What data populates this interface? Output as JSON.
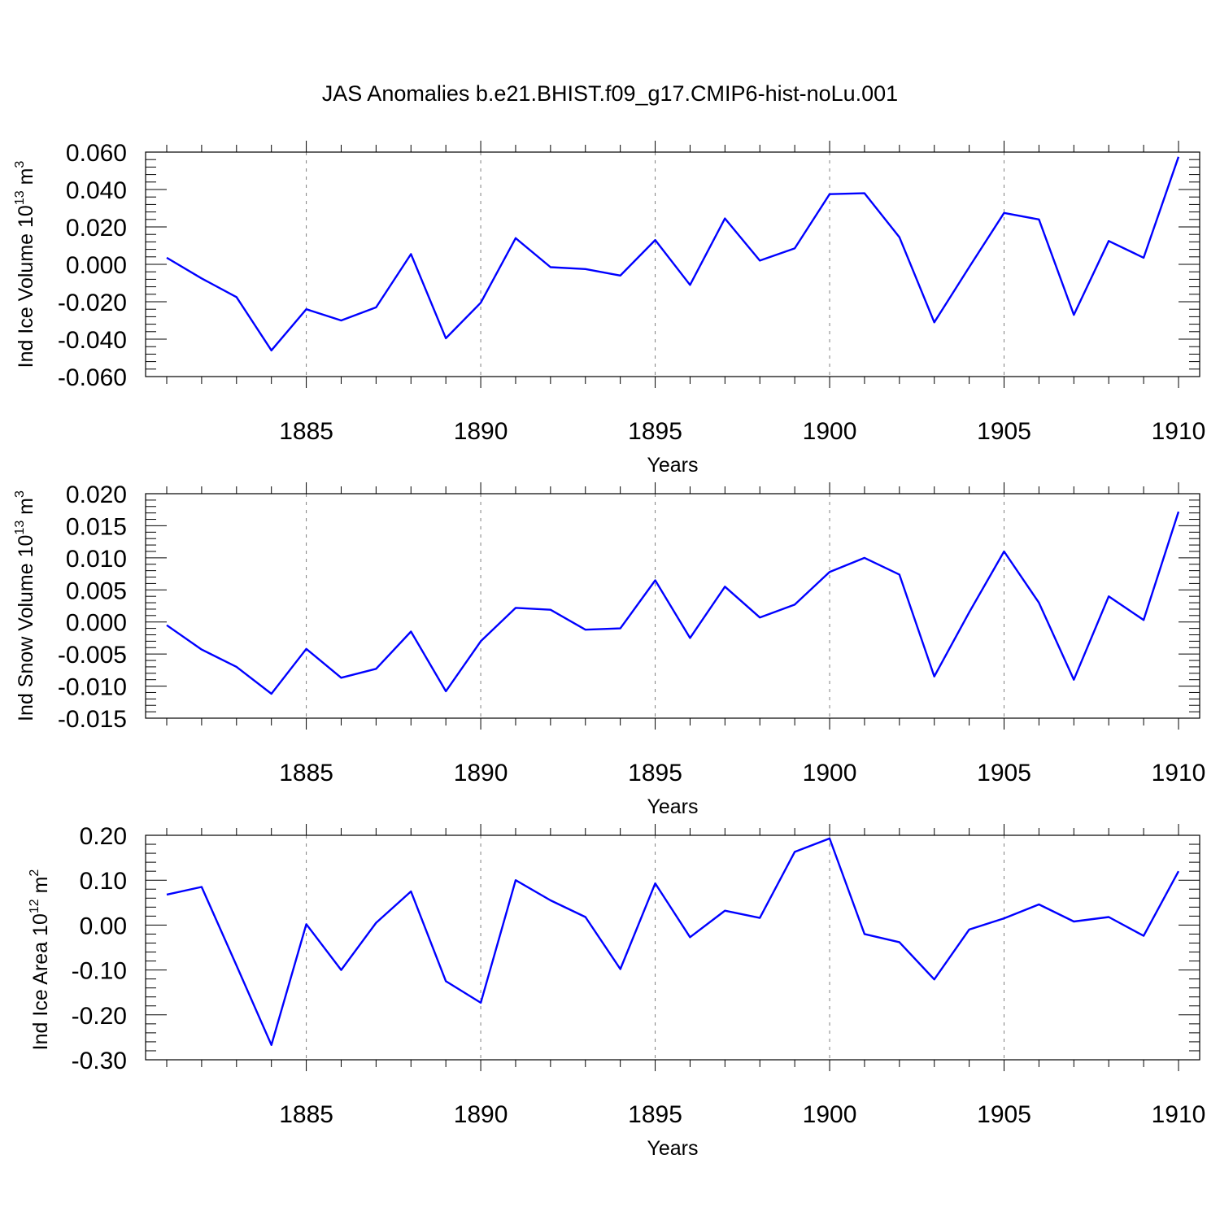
{
  "title": "JAS Anomalies b.e21.BHIST.f09_g17.CMIP6-hist-noLu.001",
  "line_color": "#0000ff",
  "chart_data": [
    {
      "type": "line",
      "ylabel": "Ind Ice Volume 10",
      "ylabel_exp": "13",
      "ylabel_unit": "m",
      "ylabel_unit_exp": "3",
      "xlabel": "Years",
      "xlim": [
        1881,
        1910
      ],
      "ylim": [
        -0.06,
        0.06
      ],
      "x_ticks": [
        1885,
        1890,
        1895,
        1900,
        1905,
        1910
      ],
      "x_tick_labels": [
        "1885",
        "1890",
        "1895",
        "1900",
        "1905",
        "1910"
      ],
      "y_ticks": [
        0.06,
        0.04,
        0.02,
        0.0,
        -0.02,
        -0.04,
        -0.06
      ],
      "y_tick_labels": [
        "0.060",
        "0.040",
        "0.020",
        "0.000",
        "-0.020",
        "-0.040",
        "-0.060"
      ],
      "grid": "vertical dashed at major x ticks",
      "x": [
        1881,
        1882,
        1883,
        1884,
        1885,
        1886,
        1887,
        1888,
        1889,
        1890,
        1891,
        1892,
        1893,
        1894,
        1895,
        1896,
        1897,
        1898,
        1899,
        1900,
        1901,
        1902,
        1903,
        1904,
        1905,
        1906,
        1907,
        1908,
        1909,
        1910
      ],
      "values": [
        0.0035,
        -0.0075,
        -0.0175,
        -0.046,
        -0.024,
        -0.03,
        -0.023,
        0.0055,
        -0.0395,
        -0.0205,
        0.014,
        -0.0015,
        -0.0025,
        -0.006,
        0.013,
        -0.011,
        0.0245,
        0.002,
        0.0085,
        0.0375,
        0.038,
        0.0145,
        -0.031,
        -0.0015,
        0.0275,
        0.024,
        -0.027,
        0.0125,
        0.0035,
        0.0575
      ]
    },
    {
      "type": "line",
      "ylabel": "Ind Snow Volume 10",
      "ylabel_exp": "13",
      "ylabel_unit": "m",
      "ylabel_unit_exp": "3",
      "xlabel": "Years",
      "xlim": [
        1881,
        1910
      ],
      "ylim": [
        -0.015,
        0.02
      ],
      "x_ticks": [
        1885,
        1890,
        1895,
        1900,
        1905,
        1910
      ],
      "x_tick_labels": [
        "1885",
        "1890",
        "1895",
        "1900",
        "1905",
        "1910"
      ],
      "y_ticks": [
        0.02,
        0.015,
        0.01,
        0.005,
        0.0,
        -0.005,
        -0.01,
        -0.015
      ],
      "y_tick_labels": [
        "0.020",
        "0.015",
        "0.010",
        "0.005",
        "0.000",
        "-0.005",
        "-0.010",
        "-0.015"
      ],
      "grid": "vertical dashed at major x ticks",
      "x": [
        1881,
        1882,
        1883,
        1884,
        1885,
        1886,
        1887,
        1888,
        1889,
        1890,
        1891,
        1892,
        1893,
        1894,
        1895,
        1896,
        1897,
        1898,
        1899,
        1900,
        1901,
        1902,
        1903,
        1904,
        1905,
        1906,
        1907,
        1908,
        1909,
        1910
      ],
      "values": [
        -0.0005,
        -0.0043,
        -0.007,
        -0.0112,
        -0.0042,
        -0.0087,
        -0.0073,
        -0.0015,
        -0.0108,
        -0.003,
        0.0022,
        0.0019,
        -0.0012,
        -0.001,
        0.0065,
        -0.0025,
        0.0055,
        0.0007,
        0.0027,
        0.0078,
        0.01,
        0.0074,
        -0.0085,
        0.0015,
        0.011,
        0.003,
        -0.009,
        0.004,
        0.0003,
        0.0172
      ]
    },
    {
      "type": "line",
      "ylabel": "Ind Ice Area 10",
      "ylabel_exp": "12",
      "ylabel_unit": "m",
      "ylabel_unit_exp": "2",
      "xlabel": "Years",
      "xlim": [
        1881,
        1910
      ],
      "ylim": [
        -0.3,
        0.2
      ],
      "x_ticks": [
        1885,
        1890,
        1895,
        1900,
        1905,
        1910
      ],
      "x_tick_labels": [
        "1885",
        "1890",
        "1895",
        "1900",
        "1905",
        "1910"
      ],
      "y_ticks": [
        0.2,
        0.1,
        0.0,
        -0.1,
        -0.2,
        -0.3
      ],
      "y_tick_labels": [
        "0.20",
        "0.10",
        "0.00",
        "-0.10",
        "-0.20",
        "-0.30"
      ],
      "grid": "vertical dashed at major x ticks",
      "x": [
        1881,
        1882,
        1883,
        1884,
        1885,
        1886,
        1887,
        1888,
        1889,
        1890,
        1891,
        1892,
        1893,
        1894,
        1895,
        1896,
        1897,
        1898,
        1899,
        1900,
        1901,
        1902,
        1903,
        1904,
        1905,
        1906,
        1907,
        1908,
        1909,
        1910
      ],
      "values": [
        0.068,
        0.085,
        -0.09,
        -0.267,
        0.002,
        -0.1,
        0.005,
        0.075,
        -0.125,
        -0.173,
        0.1,
        0.055,
        0.018,
        -0.098,
        0.093,
        -0.027,
        0.032,
        0.016,
        0.163,
        0.193,
        -0.02,
        -0.038,
        -0.121,
        -0.01,
        0.015,
        0.046,
        0.008,
        0.018,
        -0.024,
        0.12
      ]
    }
  ]
}
